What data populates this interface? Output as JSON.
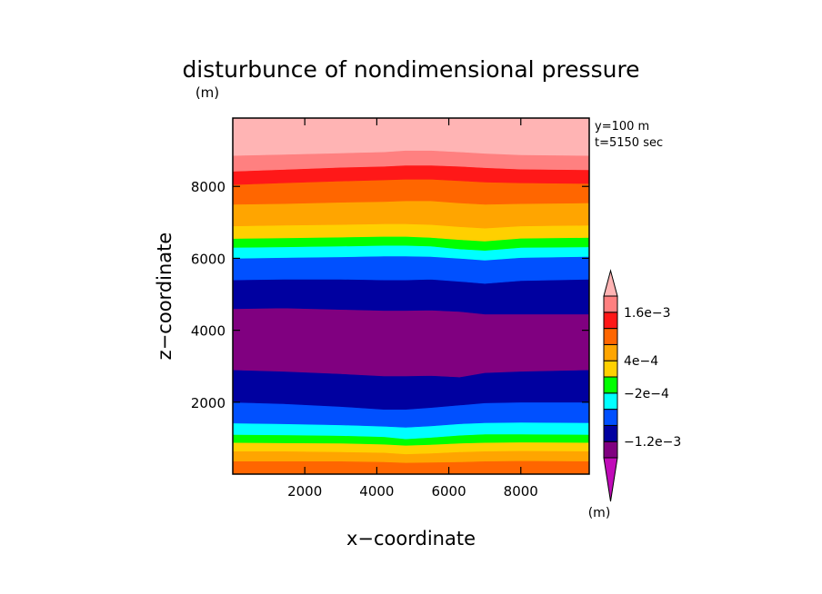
{
  "chart_data": {
    "type": "contour",
    "title": "disturbunce of nondimensional pressure",
    "title_unit": "(m)",
    "xlabel": "x−coordinate",
    "ylabel": "z−coordinate",
    "xlim": [
      0,
      9900
    ],
    "ylim": [
      0,
      9900
    ],
    "xticks": [
      2000,
      4000,
      6000,
      8000
    ],
    "yticks": [
      2000,
      4000,
      6000,
      8000
    ],
    "xtick_labels": [
      "2000",
      "4000",
      "6000",
      "8000"
    ],
    "ytick_labels": [
      "2000",
      "4000",
      "6000",
      "8000"
    ],
    "info": [
      "y=100 m",
      "t=5150 sec"
    ],
    "colorbar": {
      "unit": "(m)",
      "colors": [
        "#c00bb8",
        "#800080",
        "#0000a0",
        "#0050ff",
        "#00ffff",
        "#00ff00",
        "#ffd000",
        "#ffa500",
        "#ff6600",
        "#ff1818",
        "#ff8080",
        "#ffb4b4"
      ],
      "labels": [
        {
          "text": "1.6e−3",
          "after_band": 9
        },
        {
          "text": "4e−4",
          "after_band": 6
        },
        {
          "text": "−2e−4",
          "after_band": 4
        },
        {
          "text": "−1.2e−3",
          "after_band": 1
        }
      ]
    },
    "x_profile": [
      0,
      1400,
      3000,
      4200,
      4800,
      5500,
      6300,
      7000,
      8000,
      9900
    ],
    "bands": [
      {
        "color": "#ff6600",
        "upper": [
          360,
          360,
          360,
          340,
          320,
          330,
          340,
          360,
          370,
          360
        ]
      },
      {
        "color": "#ffa500",
        "upper": [
          640,
          640,
          620,
          600,
          560,
          580,
          620,
          640,
          650,
          640
        ]
      },
      {
        "color": "#ffd000",
        "upper": [
          880,
          870,
          860,
          830,
          800,
          820,
          860,
          880,
          890,
          880
        ]
      },
      {
        "color": "#00ff00",
        "upper": [
          1100,
          1090,
          1070,
          1040,
          980,
          1020,
          1080,
          1110,
          1110,
          1100
        ]
      },
      {
        "color": "#00ffff",
        "upper": [
          1420,
          1400,
          1370,
          1330,
          1300,
          1340,
          1400,
          1430,
          1440,
          1430
        ]
      },
      {
        "color": "#0050ff",
        "upper": [
          2000,
          1960,
          1880,
          1800,
          1800,
          1850,
          1920,
          1980,
          2000,
          2000
        ]
      },
      {
        "color": "#0000a0",
        "upper": [
          2900,
          2860,
          2790,
          2730,
          2730,
          2740,
          2700,
          2820,
          2860,
          2900
        ]
      },
      {
        "color": "#800080",
        "upper": [
          4600,
          4620,
          4580,
          4550,
          4550,
          4560,
          4520,
          4450,
          4450,
          4450
        ]
      },
      {
        "color": "#0000a0",
        "upper": [
          5400,
          5420,
          5420,
          5400,
          5400,
          5420,
          5360,
          5300,
          5380,
          5420
        ]
      },
      {
        "color": "#0050ff",
        "upper": [
          6000,
          6020,
          6040,
          6060,
          6060,
          6050,
          6000,
          5950,
          6020,
          6050
        ]
      },
      {
        "color": "#00ffff",
        "upper": [
          6300,
          6320,
          6340,
          6360,
          6360,
          6340,
          6260,
          6220,
          6300,
          6320
        ]
      },
      {
        "color": "#00ff00",
        "upper": [
          6550,
          6570,
          6590,
          6610,
          6610,
          6580,
          6520,
          6480,
          6560,
          6580
        ]
      },
      {
        "color": "#ffd000",
        "upper": [
          6900,
          6920,
          6940,
          6960,
          6960,
          6940,
          6880,
          6840,
          6900,
          6920
        ]
      },
      {
        "color": "#ffa500",
        "upper": [
          7500,
          7520,
          7560,
          7580,
          7600,
          7600,
          7540,
          7500,
          7520,
          7540
        ]
      },
      {
        "color": "#ff6600",
        "upper": [
          8050,
          8100,
          8150,
          8180,
          8200,
          8200,
          8160,
          8120,
          8100,
          8080
        ]
      },
      {
        "color": "#ff1818",
        "upper": [
          8420,
          8470,
          8530,
          8560,
          8590,
          8590,
          8560,
          8520,
          8480,
          8460
        ]
      },
      {
        "color": "#ff8080",
        "upper": [
          8860,
          8890,
          8930,
          8960,
          9000,
          9000,
          8960,
          8920,
          8880,
          8860
        ]
      },
      {
        "color": "#ffb4b4",
        "upper": [
          9900,
          9900,
          9900,
          9900,
          9900,
          9900,
          9900,
          9900,
          9900,
          9900
        ]
      }
    ]
  }
}
